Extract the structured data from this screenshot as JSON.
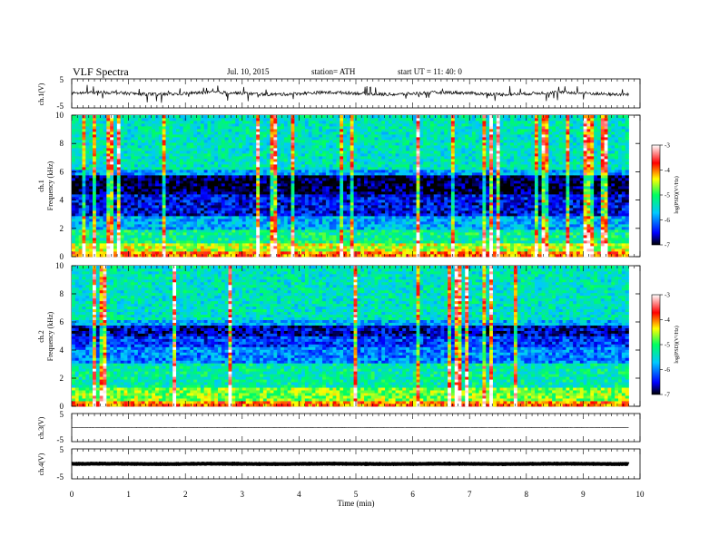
{
  "header": {
    "title": "VLF  Spectra",
    "date": "Jul.  10,  2015",
    "station": "station= ATH",
    "start": "start  UT  =   11: 40: 0"
  },
  "chart_data": [
    {
      "type": "line",
      "panel": "ch1-waveform",
      "ylabel": "ch.1(V)",
      "ylim": [
        -5,
        5
      ],
      "y_tick_labels": [
        "5",
        "-5"
      ],
      "x_range_min": [
        0,
        9.8
      ],
      "description_of_signal": "noisy waveform around ~0 V with frequent spikes reaching about +/-3 V",
      "approx_baseline_v": 0,
      "approx_spike_amplitude_v": 3,
      "color": "#000000"
    },
    {
      "type": "heatmap",
      "panel": "ch1-spectrogram",
      "ylabel": "Frequency  (kHz)",
      "channel_label": "ch.1",
      "ylim": [
        0,
        10
      ],
      "y_tick_labels": [
        "0",
        "2",
        "4",
        "6",
        "8",
        "10"
      ],
      "x_range_min": [
        0,
        9.8
      ],
      "colorbar": {
        "label": "log(PSD)(V²/Hz)",
        "range": [
          -7,
          -3
        ],
        "tick_labels": [
          "-3",
          "-4",
          "-5",
          "-6",
          "-7"
        ]
      },
      "bands_khz_level": [
        {
          "from": 0.0,
          "to": 0.3,
          "level": -4.0
        },
        {
          "from": 0.3,
          "to": 1.0,
          "level": -4.5
        },
        {
          "from": 1.0,
          "to": 2.0,
          "level": -5.2
        },
        {
          "from": 2.0,
          "to": 2.8,
          "level": -5.8
        },
        {
          "from": 2.8,
          "to": 4.4,
          "level": -6.5
        },
        {
          "from": 4.4,
          "to": 5.7,
          "level": -6.9
        },
        {
          "from": 5.7,
          "to": 6.1,
          "level": -5.9
        },
        {
          "from": 6.1,
          "to": 10.0,
          "level": -5.4
        }
      ]
    },
    {
      "type": "heatmap",
      "panel": "ch2-spectrogram",
      "ylabel": "Frequency  (kHz)",
      "channel_label": "ch.2",
      "ylim": [
        0,
        10
      ],
      "y_tick_labels": [
        "0",
        "2",
        "4",
        "6",
        "8",
        "10"
      ],
      "x_range_min": [
        0,
        9.8
      ],
      "colorbar": {
        "label": "log(PSD)(V²/Hz)",
        "range": [
          -7,
          -3
        ],
        "tick_labels": [
          "-3",
          "-4",
          "-5",
          "-6",
          "-7"
        ]
      },
      "bands_khz_level": [
        {
          "from": 0.0,
          "to": 0.4,
          "level": -4.0
        },
        {
          "from": 0.4,
          "to": 1.4,
          "level": -4.7
        },
        {
          "from": 1.4,
          "to": 3.0,
          "level": -5.3
        },
        {
          "from": 3.0,
          "to": 4.2,
          "level": -6.0
        },
        {
          "from": 4.2,
          "to": 5.0,
          "level": -6.3
        },
        {
          "from": 5.0,
          "to": 5.8,
          "level": -6.6
        },
        {
          "from": 5.8,
          "to": 6.2,
          "level": -5.8
        },
        {
          "from": 6.2,
          "to": 10.0,
          "level": -5.4
        }
      ]
    },
    {
      "type": "line",
      "panel": "ch3-waveform",
      "ylabel": "ch.3(V)",
      "ylim": [
        -5,
        5
      ],
      "y_tick_labels": [
        "5",
        "-5"
      ],
      "x_range_min": [
        0,
        9.8
      ],
      "approx_baseline_v": 0,
      "color": "#000000"
    },
    {
      "type": "line",
      "panel": "ch4-waveform",
      "ylabel": "ch.4(V)",
      "ylim": [
        -5,
        5
      ],
      "y_tick_labels": [
        "5",
        "-5"
      ],
      "x_range_min": [
        0,
        9.8
      ],
      "approx_baseline_v": 0,
      "color": "#000000"
    }
  ],
  "x_axis": {
    "label": "Time  (min)",
    "range": [
      0,
      10
    ],
    "tick_labels": [
      "0",
      "1",
      "2",
      "3",
      "4",
      "5",
      "6",
      "7",
      "8",
      "9",
      "10"
    ]
  }
}
